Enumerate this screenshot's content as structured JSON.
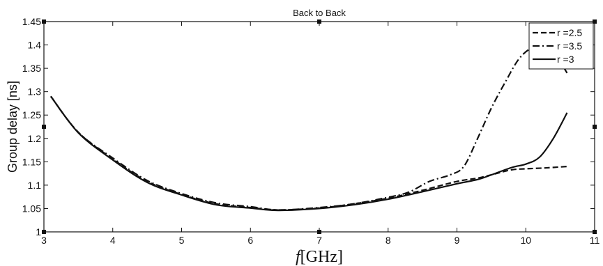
{
  "chart_data": {
    "type": "line",
    "title": "Back to Back",
    "xlabel_italic": "f",
    "xlabel_rest": "[GHz]",
    "ylabel": "Group delay [ns]",
    "xlim": [
      3,
      11
    ],
    "ylim": [
      1,
      1.45
    ],
    "xticks": [
      3,
      4,
      5,
      6,
      7,
      8,
      9,
      10,
      11
    ],
    "yticks": [
      1,
      1.05,
      1.1,
      1.15,
      1.2,
      1.25,
      1.3,
      1.35,
      1.4,
      1.45
    ],
    "grid": false,
    "legend_position": "top-right",
    "series": [
      {
        "name": "r =2.5",
        "style": "dashed",
        "color": "#111111",
        "x": [
          3.1,
          3.5,
          4.0,
          4.5,
          5.0,
          5.5,
          6.0,
          6.4,
          7.0,
          7.5,
          8.0,
          8.5,
          9.0,
          9.3,
          9.6,
          9.8,
          10.0,
          10.3,
          10.6
        ],
        "y": [
          1.29,
          1.213,
          1.156,
          1.108,
          1.08,
          1.06,
          1.052,
          1.047,
          1.051,
          1.06,
          1.072,
          1.089,
          1.108,
          1.115,
          1.126,
          1.133,
          1.135,
          1.137,
          1.14
        ]
      },
      {
        "name": "r =3.5",
        "style": "dashdot",
        "color": "#111111",
        "x": [
          3.1,
          3.5,
          4.0,
          4.5,
          5.0,
          5.5,
          6.0,
          6.4,
          7.0,
          7.5,
          8.0,
          8.3,
          8.6,
          8.9,
          9.1,
          9.3,
          9.5,
          9.7,
          9.9,
          10.1,
          10.3,
          10.45,
          10.6
        ],
        "y": [
          1.29,
          1.213,
          1.158,
          1.11,
          1.082,
          1.062,
          1.054,
          1.047,
          1.052,
          1.06,
          1.074,
          1.085,
          1.108,
          1.122,
          1.14,
          1.2,
          1.265,
          1.32,
          1.37,
          1.395,
          1.4,
          1.375,
          1.34
        ]
      },
      {
        "name": "r =3",
        "style": "solid",
        "color": "#111111",
        "x": [
          3.1,
          3.5,
          4.0,
          4.5,
          5.0,
          5.5,
          6.0,
          6.4,
          7.0,
          7.5,
          8.0,
          8.5,
          9.0,
          9.3,
          9.5,
          9.8,
          10.0,
          10.2,
          10.4,
          10.6
        ],
        "y": [
          1.29,
          1.212,
          1.154,
          1.106,
          1.079,
          1.058,
          1.051,
          1.046,
          1.05,
          1.058,
          1.07,
          1.086,
          1.103,
          1.112,
          1.122,
          1.138,
          1.145,
          1.16,
          1.2,
          1.255
        ]
      }
    ]
  }
}
